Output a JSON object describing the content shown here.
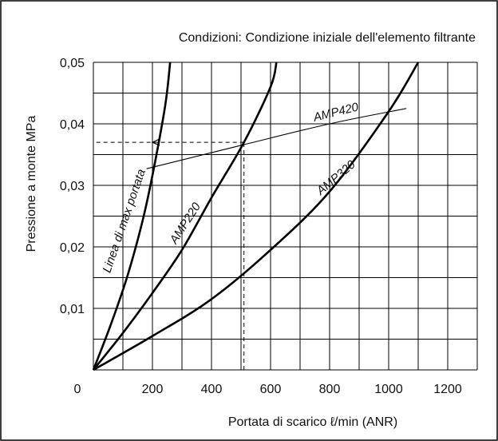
{
  "chart_data": {
    "type": "line",
    "title": "Condizioni: Condizione iniziale dell'elemento filtrante",
    "xlabel": "Portata di scarico ℓ/min (ANR)",
    "ylabel": "Pressione a monte  MPa",
    "xlim": [
      0,
      1300
    ],
    "ylim": [
      0,
      0.05
    ],
    "x_ticks": [
      0,
      200,
      400,
      600,
      800,
      1000,
      1200
    ],
    "x_tick_labels": [
      "0",
      "200",
      "400",
      "600",
      "800",
      "1000",
      "1200"
    ],
    "y_ticks": [
      0.01,
      0.02,
      0.03,
      0.04,
      0.05
    ],
    "y_tick_labels": [
      "0,01",
      "0,02",
      "0,03",
      "0,04",
      "0,05"
    ],
    "grid": true,
    "series": [
      {
        "name": "AMP220",
        "x": [
          0,
          60,
          120,
          180,
          240,
          260
        ],
        "y": [
          0,
          0.0075,
          0.016,
          0.027,
          0.042,
          0.05
        ]
      },
      {
        "name": "AMP320",
        "x": [
          0,
          100,
          200,
          300,
          400,
          510,
          600,
          620
        ],
        "y": [
          0,
          0.006,
          0.0125,
          0.0195,
          0.028,
          0.037,
          0.046,
          0.05
        ]
      },
      {
        "name": "AMP420",
        "x": [
          0,
          200,
          400,
          600,
          800,
          1000,
          1100
        ],
        "y": [
          0,
          0.0055,
          0.0115,
          0.0195,
          0.029,
          0.042,
          0.05
        ]
      },
      {
        "name": "Linea di max portata",
        "x": [
          180,
          500,
          800,
          1060
        ],
        "y": [
          0.0327,
          0.0365,
          0.04,
          0.0425
        ]
      }
    ],
    "annotations": [
      {
        "text": "Linea di max portata"
      },
      {
        "text": "AMP220"
      },
      {
        "text": "AMP320"
      },
      {
        "text": "AMP420"
      }
    ],
    "guide": {
      "x": 510,
      "y": 0.037,
      "target_x": 200
    }
  }
}
